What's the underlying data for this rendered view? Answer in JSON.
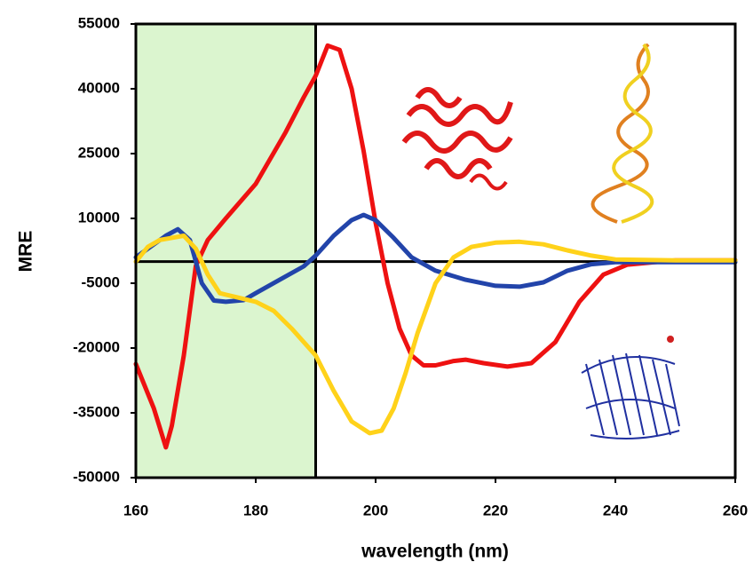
{
  "chart_data": {
    "type": "line",
    "x_label": "wavelength (nm)",
    "y_label": "MRE",
    "xlim": [
      160,
      260
    ],
    "xticks": [
      160,
      180,
      200,
      220,
      240,
      260
    ],
    "ylim": [
      -50000,
      55000
    ],
    "yticks": [
      -50000,
      -35000,
      -20000,
      -5000,
      10000,
      25000,
      40000,
      55000
    ],
    "shaded_region": {
      "x": [
        160,
        190
      ],
      "color": "#dbf5cf"
    },
    "vline": 190,
    "hline": 0,
    "series": [
      {
        "color": "#ee1111",
        "x": [
          160,
          163,
          165,
          166,
          168,
          170,
          172,
          175,
          180,
          185,
          188,
          190,
          192,
          194,
          196,
          198,
          200,
          202,
          204,
          206,
          208,
          210,
          213,
          215,
          218,
          222,
          226,
          230,
          234,
          238,
          242,
          246,
          250,
          260
        ],
        "values": [
          -23700,
          -34000,
          -43000,
          -38000,
          -21700,
          -1000,
          5000,
          10000,
          18000,
          30000,
          38000,
          43000,
          50000,
          49000,
          40000,
          25600,
          9000,
          -5000,
          -15500,
          -21700,
          -24000,
          -24000,
          -23000,
          -22700,
          -23500,
          -24300,
          -23500,
          -18600,
          -9300,
          -3000,
          -700,
          -200,
          300,
          300
        ]
      },
      {
        "color": "#2244aa",
        "x": [
          160,
          163,
          165,
          167,
          169,
          171,
          173,
          175,
          178,
          180,
          184,
          188,
          190,
          193,
          196,
          198,
          200,
          203,
          206,
          210,
          215,
          220,
          224,
          228,
          232,
          236,
          240,
          260
        ],
        "values": [
          1000,
          4000,
          6000,
          7500,
          5000,
          -5000,
          -9000,
          -9300,
          -8900,
          -7300,
          -4200,
          -1100,
          1400,
          6000,
          9600,
          10800,
          9600,
          5500,
          1000,
          -2100,
          -4200,
          -5600,
          -5800,
          -4800,
          -2100,
          -600,
          -100,
          -100
        ]
      },
      {
        "color": "#ffd21a",
        "x": [
          160,
          162,
          164,
          166,
          168,
          170,
          172,
          174,
          177,
          180,
          183,
          186,
          190,
          193,
          196,
          199,
          201,
          203,
          205,
          207,
          210,
          213,
          216,
          220,
          224,
          228,
          232,
          236,
          240,
          250,
          260
        ],
        "values": [
          0,
          3400,
          5000,
          5500,
          6000,
          3000,
          -3000,
          -7300,
          -8300,
          -9300,
          -11400,
          -15500,
          -21700,
          -29900,
          -37000,
          -39700,
          -39100,
          -34000,
          -25800,
          -16500,
          -5000,
          1000,
          3400,
          4400,
          4600,
          4000,
          2600,
          1400,
          500,
          300,
          300
        ]
      }
    ]
  }
}
